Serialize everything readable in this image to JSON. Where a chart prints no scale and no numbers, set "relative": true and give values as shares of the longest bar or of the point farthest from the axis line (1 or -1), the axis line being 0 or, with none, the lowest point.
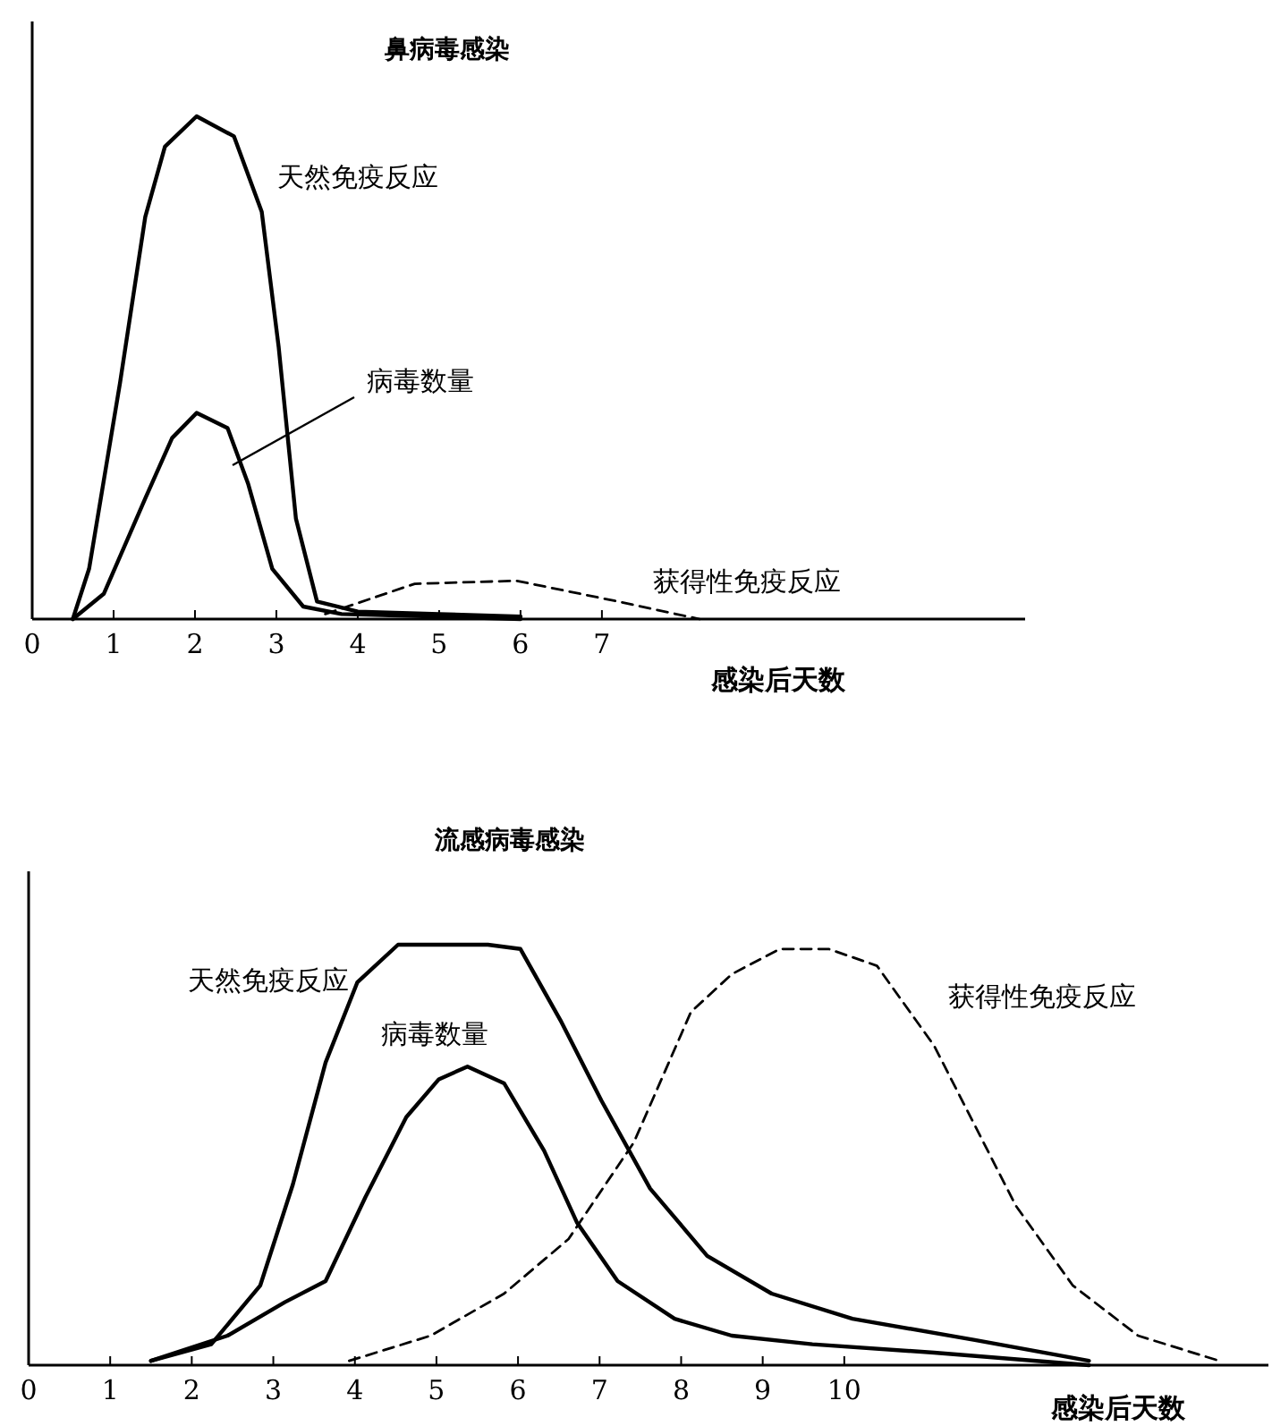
{
  "chart_data": [
    {
      "type": "line",
      "title": "鼻病毒感染",
      "xlabel": "感染后天数",
      "relative": true,
      "tick_labels": "x",
      "xlim": [
        0,
        12.2
      ],
      "xticks": [
        0,
        1,
        2,
        3,
        4,
        5,
        6,
        7
      ],
      "series": [
        {
          "name": "天然免疫反应",
          "color": "#000000",
          "line_style": "solid",
          "x": [
            0.5,
            0.7,
            1.08,
            1.39,
            1.63,
            2.02,
            2.48,
            2.82,
            3.03,
            3.24,
            3.5,
            4.0,
            5.0,
            6.0
          ],
          "values": [
            0,
            0.1,
            0.47,
            0.8,
            0.94,
            1.0,
            0.96,
            0.81,
            0.54,
            0.2,
            0.035,
            0.015,
            0.01,
            0.005
          ]
        },
        {
          "name": "病毒数量",
          "color": "#000000",
          "line_style": "solid",
          "x": [
            0.5,
            0.88,
            1.39,
            1.72,
            2.02,
            2.4,
            2.65,
            2.95,
            3.33,
            3.8,
            5.0,
            6.0
          ],
          "values": [
            0,
            0.05,
            0.24,
            0.36,
            0.41,
            0.38,
            0.27,
            0.1,
            0.025,
            0.01,
            0.005,
            0
          ]
        },
        {
          "name": "获得性免疫反应",
          "color": "#000000",
          "line_style": "dashed",
          "x": [
            3.6,
            4.7,
            5.95,
            7.2,
            8.2
          ],
          "values": [
            0.01,
            0.07,
            0.076,
            0.035,
            0
          ]
        }
      ]
    },
    {
      "type": "line",
      "title": "流感病毒感染",
      "xlabel": "感染后天数",
      "relative": true,
      "tick_labels": "x",
      "xlim": [
        0,
        15.2
      ],
      "xticks": [
        0,
        1,
        2,
        3,
        4,
        5,
        6,
        7,
        8,
        9,
        10
      ],
      "series": [
        {
          "name": "天然免疫反应",
          "color": "#000000",
          "line_style": "solid",
          "x": [
            1.5,
            2.24,
            2.84,
            3.24,
            3.64,
            4.03,
            4.53,
            5.63,
            6.03,
            6.52,
            7.02,
            7.62,
            8.32,
            9.11,
            10.1,
            11.6,
            13.0
          ],
          "values": [
            0.01,
            0.05,
            0.19,
            0.43,
            0.72,
            0.91,
            1.0,
            1.0,
            0.99,
            0.82,
            0.63,
            0.42,
            0.26,
            0.17,
            0.11,
            0.06,
            0.01
          ]
        },
        {
          "name": "病毒数量",
          "color": "#000000",
          "line_style": "solid",
          "x": [
            1.5,
            2.44,
            3.14,
            3.64,
            4.13,
            4.63,
            5.03,
            5.38,
            5.83,
            6.32,
            6.72,
            7.22,
            7.92,
            8.62,
            9.61,
            11.1,
            13.0
          ],
          "values": [
            0.01,
            0.07,
            0.15,
            0.2,
            0.4,
            0.59,
            0.68,
            0.71,
            0.67,
            0.51,
            0.34,
            0.2,
            0.11,
            0.07,
            0.05,
            0.03,
            0
          ]
        },
        {
          "name": "获得性免疫反应",
          "color": "#000000",
          "line_style": "dashed",
          "x": [
            3.93,
            4.93,
            5.83,
            6.62,
            7.42,
            8.12,
            8.62,
            9.21,
            9.81,
            10.4,
            11.1,
            11.6,
            12.1,
            12.8,
            13.6,
            14.6
          ],
          "values": [
            0.01,
            0.07,
            0.17,
            0.3,
            0.53,
            0.84,
            0.93,
            0.99,
            0.99,
            0.95,
            0.76,
            0.57,
            0.38,
            0.19,
            0.07,
            0.01
          ]
        }
      ]
    }
  ]
}
